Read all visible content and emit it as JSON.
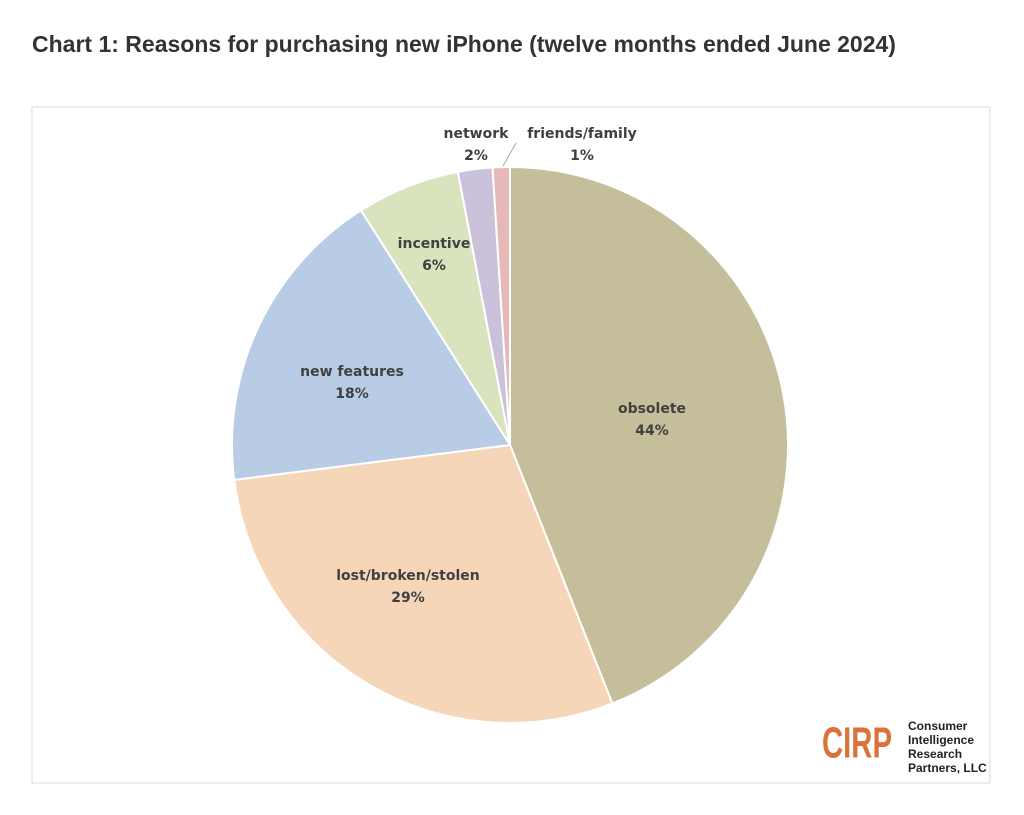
{
  "chart_data": {
    "type": "pie",
    "title": "Chart 1: Reasons for purchasing new iPhone (twelve months ended June 2024)",
    "categories": [
      "obsolete",
      "lost/broken/stolen",
      "new features",
      "incentive",
      "network",
      "friends/family"
    ],
    "values": [
      44,
      29,
      18,
      6,
      2,
      1
    ],
    "value_labels": [
      "44%",
      "29%",
      "18%",
      "6%",
      "2%",
      "1%"
    ],
    "colors": [
      "#c4bf9a",
      "#f5d6b9",
      "#b9cce5",
      "#d9e4bf",
      "#ccc1da",
      "#e6b9b8"
    ],
    "logo": {
      "mark": "CIRP",
      "lines": [
        "Consumer",
        "Intelligence",
        "Research",
        "Partners, LLC"
      ]
    }
  }
}
